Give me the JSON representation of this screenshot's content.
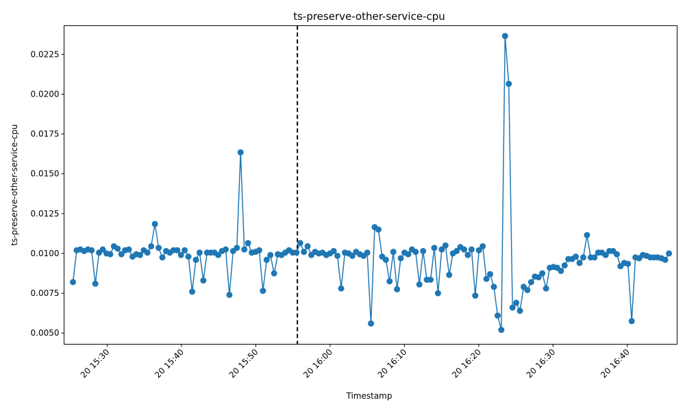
{
  "chart_data": {
    "type": "line",
    "title": "ts-preserve-other-service-cpu",
    "xlabel": "Timestamp",
    "ylabel": "ts-preserve-other-service-cpu",
    "x_ticks": [
      {
        "minute": 30,
        "label": "20 15:30"
      },
      {
        "minute": 40,
        "label": "20 15:40"
      },
      {
        "minute": 50,
        "label": "20 15:50"
      },
      {
        "minute": 60,
        "label": "20 16:00"
      },
      {
        "minute": 70,
        "label": "20 16:10"
      },
      {
        "minute": 80,
        "label": "20 16:20"
      },
      {
        "minute": 90,
        "label": "20 16:30"
      },
      {
        "minute": 100,
        "label": "20 16:40"
      }
    ],
    "y_ticks": [
      {
        "value": 0.005,
        "label": "0.0050"
      },
      {
        "value": 0.0075,
        "label": "0.0075"
      },
      {
        "value": 0.01,
        "label": "0.0100"
      },
      {
        "value": 0.0125,
        "label": "0.0125"
      },
      {
        "value": 0.015,
        "label": "0.0150"
      },
      {
        "value": 0.0175,
        "label": "0.0175"
      },
      {
        "value": 0.02,
        "label": "0.0200"
      },
      {
        "value": 0.0225,
        "label": "0.0225"
      }
    ],
    "xlim": [
      24.2,
      106.7
    ],
    "ylim": [
      0.0043,
      0.0243
    ],
    "grid": false,
    "marker": "circle",
    "color": "#1f77b4",
    "vline": {
      "minute": 55.6,
      "style": "dashed",
      "color": "#000000"
    },
    "series": [
      {
        "values": [
          0.0082,
          0.0102,
          0.01025,
          0.01015,
          0.01025,
          0.0102,
          0.0081,
          0.01005,
          0.01025,
          0.01,
          0.00995,
          0.01045,
          0.0103,
          0.00995,
          0.0102,
          0.01025,
          0.0098,
          0.00995,
          0.0099,
          0.0102,
          0.01005,
          0.01045,
          0.01185,
          0.01035,
          0.00975,
          0.01015,
          0.01005,
          0.0102,
          0.0102,
          0.0099,
          0.0102,
          0.0098,
          0.0076,
          0.0096,
          0.01005,
          0.0083,
          0.01005,
          0.01005,
          0.01005,
          0.0099,
          0.01015,
          0.01025,
          0.0074,
          0.01015,
          0.01035,
          0.01635,
          0.01025,
          0.01065,
          0.01005,
          0.0101,
          0.0102,
          0.00765,
          0.0096,
          0.0099,
          0.00875,
          0.00995,
          0.0099,
          0.01005,
          0.0102,
          0.01005,
          0.01005,
          0.01065,
          0.0101,
          0.01045,
          0.0099,
          0.0101,
          0.01,
          0.01005,
          0.0099,
          0.01,
          0.01015,
          0.00985,
          0.0078,
          0.01005,
          0.01,
          0.00985,
          0.0101,
          0.00995,
          0.00985,
          0.01005,
          0.0056,
          0.01165,
          0.0115,
          0.0098,
          0.0096,
          0.00825,
          0.0101,
          0.00775,
          0.0097,
          0.01005,
          0.00995,
          0.01025,
          0.0101,
          0.00805,
          0.01015,
          0.00835,
          0.00835,
          0.01035,
          0.0075,
          0.01025,
          0.0105,
          0.00865,
          0.01,
          0.01015,
          0.0104,
          0.01025,
          0.0099,
          0.01025,
          0.00735,
          0.0102,
          0.01045,
          0.0084,
          0.0087,
          0.0079,
          0.0061,
          0.0052,
          0.02365,
          0.02065,
          0.0066,
          0.0069,
          0.0064,
          0.0079,
          0.0077,
          0.0082,
          0.00855,
          0.0085,
          0.00875,
          0.0078,
          0.0091,
          0.00915,
          0.0091,
          0.0089,
          0.00925,
          0.00965,
          0.00965,
          0.0098,
          0.0094,
          0.00975,
          0.01115,
          0.00975,
          0.00975,
          0.01005,
          0.01005,
          0.0099,
          0.01015,
          0.01015,
          0.00995,
          0.0092,
          0.0094,
          0.00935,
          0.00575,
          0.00975,
          0.0097,
          0.0099,
          0.00985,
          0.00975,
          0.00975,
          0.00975,
          0.0097,
          0.0096,
          0.01
        ]
      }
    ]
  }
}
